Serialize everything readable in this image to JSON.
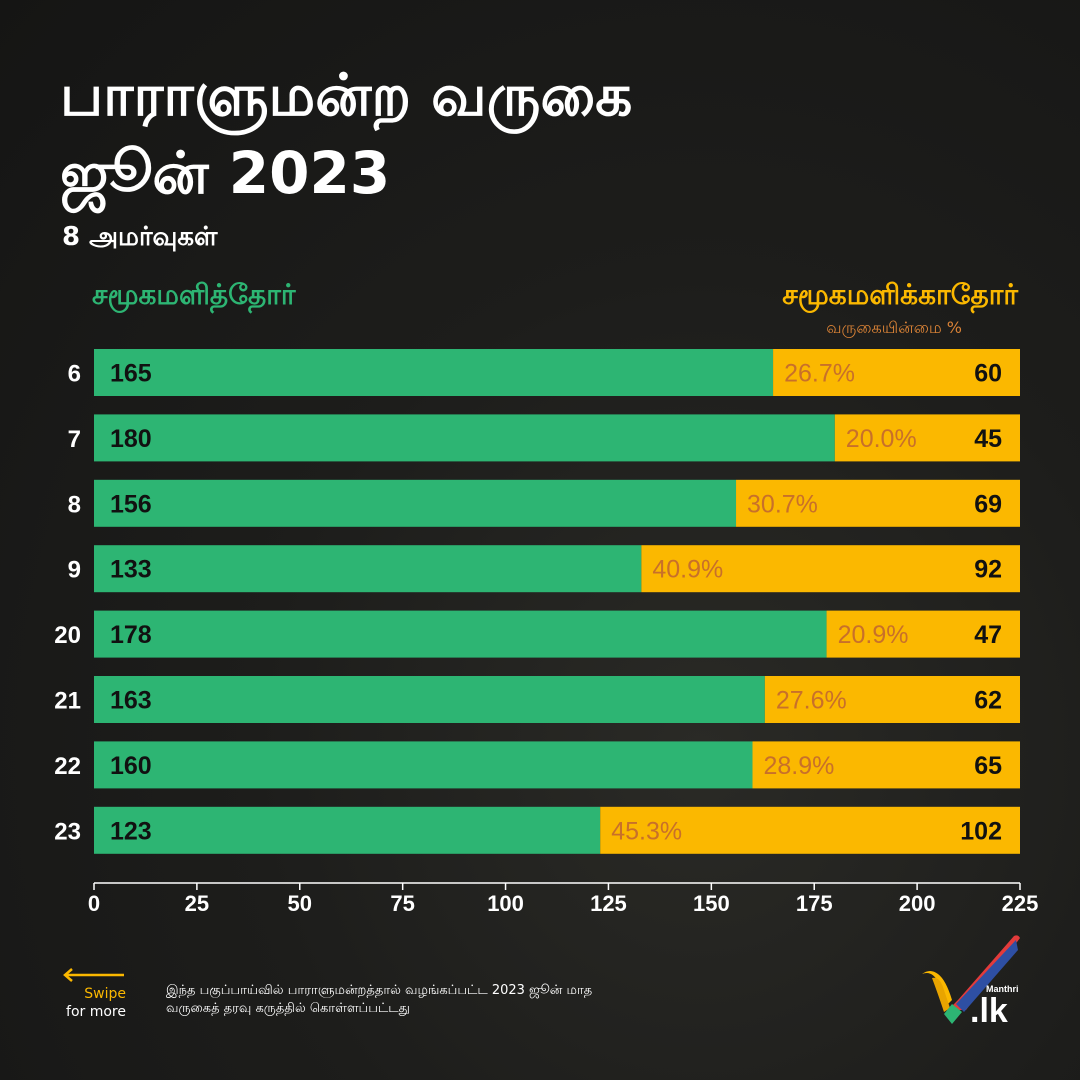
{
  "title_line1": "பாராளுமன்ற வருகை",
  "title_line2": "ஜூன் 2023",
  "subtitle": "8 அமர்வுகள்",
  "legend": {
    "attended": "சமூகமளித்தோர்",
    "absent": "சமூகமளிக்காதோர்",
    "absence_pct": "வருகையின்மை %"
  },
  "footer": {
    "swipe": "Swipe",
    "for_more": "for more",
    "note_line1": "இந்த பகுப்பாய்வில் பாராளுமன்றத்தால் வழங்கப்பட்ட 2023 ஜூன் மாத",
    "note_line2": "வருகைத் தரவு கருத்தில் கொள்ளப்பட்டது",
    "logo_small": "Manthri",
    "logo_big": ".lk"
  },
  "colors": {
    "attended": "#2db573",
    "absent": "#fbb800",
    "percent": "#c8702a"
  },
  "chart_data": {
    "type": "bar",
    "orientation": "horizontal-stacked",
    "categories": [
      "6",
      "7",
      "8",
      "9",
      "20",
      "21",
      "22",
      "23"
    ],
    "series": [
      {
        "name": "சமூகமளித்தோர்",
        "values": [
          165,
          180,
          156,
          133,
          178,
          163,
          160,
          123
        ]
      },
      {
        "name": "சமூகமளிக்காதோர்",
        "values": [
          60,
          45,
          69,
          92,
          47,
          62,
          65,
          102
        ]
      }
    ],
    "absence_percent_labels": [
      "26.7%",
      "20.0%",
      "30.7%",
      "40.9%",
      "20.9%",
      "27.6%",
      "28.9%",
      "45.3%"
    ],
    "xlim": [
      0,
      225
    ],
    "xticks": [
      0,
      25,
      50,
      75,
      100,
      125,
      150,
      175,
      200,
      225
    ],
    "grid": false
  }
}
